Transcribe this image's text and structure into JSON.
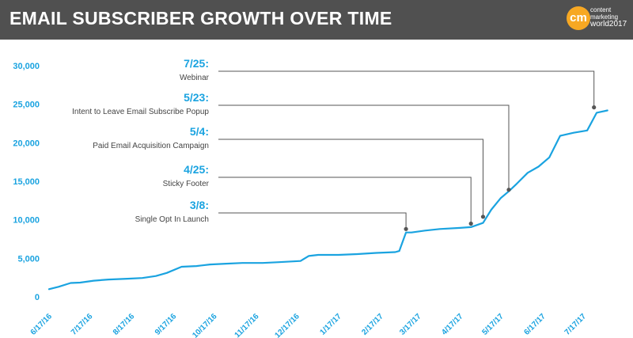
{
  "header": {
    "title": "EMAIL SUBSCRIBER GROWTH OVER TIME",
    "logo": {
      "badge": "cm",
      "line1": "content",
      "line2": "marketing",
      "line3": "world2017"
    }
  },
  "colors": {
    "header_bg": "#505050",
    "accent": "#1aa3e0",
    "text": "#444444",
    "leader": "#555555"
  },
  "chart_data": {
    "type": "line",
    "title": "EMAIL SUBSCRIBER GROWTH OVER TIME",
    "xlabel": "",
    "ylabel": "",
    "ylim": [
      0,
      30000
    ],
    "xlim": [
      "2016-06-17",
      "2017-08-10"
    ],
    "grid": false,
    "y_ticks": [
      "0",
      "5,000",
      "10,000",
      "15,000",
      "20,000",
      "25,000",
      "30,000"
    ],
    "y_tick_values": [
      0,
      5000,
      10000,
      15000,
      20000,
      25000,
      30000
    ],
    "x_ticks": [
      {
        "label": "6/17/16",
        "date": "2016-06-17"
      },
      {
        "label": "7/17/16",
        "date": "2016-07-17"
      },
      {
        "label": "8/17/16",
        "date": "2016-08-17"
      },
      {
        "label": "9/17/16",
        "date": "2016-09-17"
      },
      {
        "label": "10/17/16",
        "date": "2016-10-17"
      },
      {
        "label": "11/17/16",
        "date": "2016-11-17"
      },
      {
        "label": "12/17/16",
        "date": "2016-12-17"
      },
      {
        "label": "1/17/17",
        "date": "2017-01-17"
      },
      {
        "label": "2/17/17",
        "date": "2017-02-17"
      },
      {
        "label": "3/17/17",
        "date": "2017-03-17"
      },
      {
        "label": "4/17/17",
        "date": "2017-04-17"
      },
      {
        "label": "5/17/17",
        "date": "2017-05-17"
      },
      {
        "label": "6/17/17",
        "date": "2017-06-17"
      },
      {
        "label": "7/17/17",
        "date": "2017-07-17"
      }
    ],
    "series": [
      {
        "color": "#1aa3e0",
        "points": [
          [
            "2016-06-17",
            1000
          ],
          [
            "2016-06-24",
            1300
          ],
          [
            "2016-07-03",
            1800
          ],
          [
            "2016-07-10",
            1850
          ],
          [
            "2016-07-20",
            2100
          ],
          [
            "2016-07-31",
            2250
          ],
          [
            "2016-08-14",
            2350
          ],
          [
            "2016-08-25",
            2450
          ],
          [
            "2016-09-04",
            2700
          ],
          [
            "2016-09-12",
            3100
          ],
          [
            "2016-09-23",
            3900
          ],
          [
            "2016-10-04",
            4000
          ],
          [
            "2016-10-14",
            4200
          ],
          [
            "2016-10-26",
            4300
          ],
          [
            "2016-11-07",
            4400
          ],
          [
            "2016-11-22",
            4400
          ],
          [
            "2016-12-04",
            4500
          ],
          [
            "2016-12-20",
            4650
          ],
          [
            "2016-12-26",
            5300
          ],
          [
            "2017-01-02",
            5450
          ],
          [
            "2017-01-17",
            5450
          ],
          [
            "2017-01-31",
            5550
          ],
          [
            "2017-02-14",
            5700
          ],
          [
            "2017-02-28",
            5800
          ],
          [
            "2017-03-03",
            5950
          ],
          [
            "2017-03-08",
            8350
          ],
          [
            "2017-03-12",
            8350
          ],
          [
            "2017-03-22",
            8600
          ],
          [
            "2017-04-02",
            8800
          ],
          [
            "2017-04-17",
            8950
          ],
          [
            "2017-04-25",
            9050
          ],
          [
            "2017-05-04",
            9600
          ],
          [
            "2017-05-10",
            11300
          ],
          [
            "2017-05-17",
            12800
          ],
          [
            "2017-05-23",
            13700
          ],
          [
            "2017-05-29",
            14700
          ],
          [
            "2017-06-06",
            16100
          ],
          [
            "2017-06-14",
            16900
          ],
          [
            "2017-06-22",
            18100
          ],
          [
            "2017-06-30",
            20900
          ],
          [
            "2017-07-10",
            21300
          ],
          [
            "2017-07-17",
            21500
          ],
          [
            "2017-07-20",
            21600
          ],
          [
            "2017-07-27",
            23900
          ],
          [
            "2017-08-04",
            24200
          ]
        ]
      }
    ],
    "annotations": [
      {
        "date_label": "7/25:",
        "text": "Webinar",
        "date": "2017-07-25",
        "value": 24600
      },
      {
        "date_label": "5/23:",
        "text": "Intent to Leave Email Subscribe Popup",
        "date": "2017-05-23",
        "value": 13900
      },
      {
        "date_label": "5/4:",
        "text": "Paid Email Acquisition Campaign",
        "date": "2017-05-04",
        "value": 10400
      },
      {
        "date_label": "4/25:",
        "text": "Sticky Footer",
        "date": "2017-04-25",
        "value": 9500
      },
      {
        "date_label": "3/8:",
        "text": "Single Opt In Launch",
        "date": "2017-03-08",
        "value": 8800
      }
    ]
  }
}
